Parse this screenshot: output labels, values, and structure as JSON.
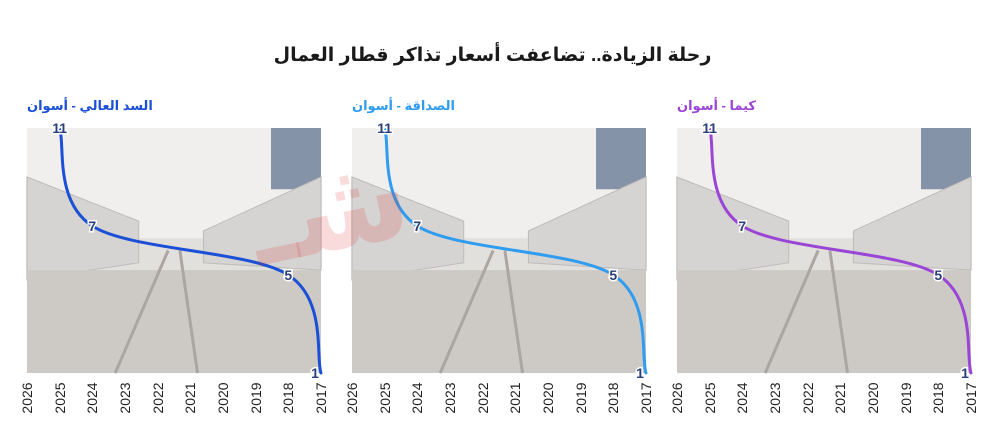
{
  "title": "رحلة الزيادة.. تضاعفت أسعار تذاكر قطار العمال",
  "chart_data": [
    {
      "type": "line",
      "title": "السد العالي - أسوان",
      "color": "#1a4fd6",
      "x": [
        "2017",
        "2018",
        "2024",
        "2025"
      ],
      "values": [
        1,
        5,
        7,
        11
      ],
      "x_ticks": [
        "2026",
        "2025",
        "2024",
        "2023",
        "2022",
        "2021",
        "2020",
        "2019",
        "2018",
        "2017"
      ],
      "xlim": [
        2017,
        2026
      ],
      "ylim": [
        1,
        11
      ],
      "x_direction": "reversed",
      "background": "photo"
    },
    {
      "type": "line",
      "title": "الصداقة - أسوان",
      "color": "#2f9cf0",
      "x": [
        "2017",
        "2018",
        "2024",
        "2025"
      ],
      "values": [
        1,
        5,
        7,
        11
      ],
      "x_ticks": [
        "2026",
        "2025",
        "2024",
        "2023",
        "2022",
        "2021",
        "2020",
        "2019",
        "2018",
        "2017"
      ],
      "xlim": [
        2017,
        2026
      ],
      "ylim": [
        1,
        11
      ],
      "x_direction": "reversed",
      "background": "photo"
    },
    {
      "type": "line",
      "title": "كيما - أسوان",
      "color": "#9b45d6",
      "x": [
        "2017",
        "2018",
        "2024",
        "2025"
      ],
      "values": [
        1,
        5,
        7,
        11
      ],
      "x_ticks": [
        "2026",
        "2025",
        "2024",
        "2023",
        "2022",
        "2021",
        "2020",
        "2019",
        "2018",
        "2017"
      ],
      "xlim": [
        2017,
        2026
      ],
      "ylim": [
        1,
        11
      ],
      "x_direction": "reversed",
      "background": "photo"
    }
  ]
}
